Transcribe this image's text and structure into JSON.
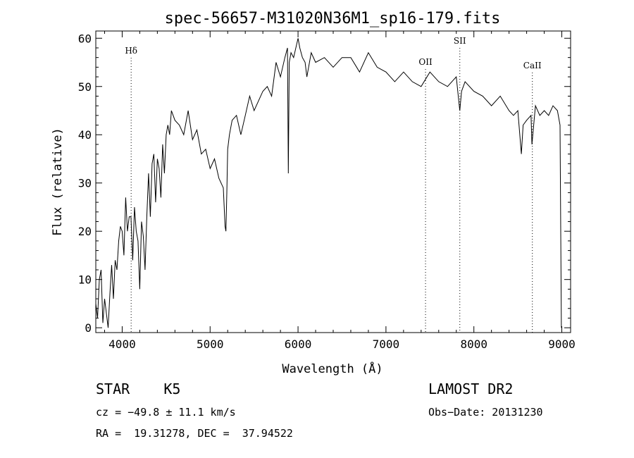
{
  "chart_data": {
    "type": "line",
    "title": "spec-56657-M31020N36M1_sp16-179.fits",
    "xlabel": "Wavelength (Å)",
    "ylabel": "Flux (relative)",
    "xlim": [
      3700,
      9100
    ],
    "ylim": [
      -1,
      61.5
    ],
    "x_ticks": [
      4000,
      5000,
      6000,
      7000,
      8000,
      9000
    ],
    "y_ticks": [
      0,
      10,
      20,
      30,
      40,
      50,
      60
    ],
    "grid": false,
    "series": [
      {
        "x": [
          3700,
          3720,
          3740,
          3760,
          3780,
          3800,
          3820,
          3840,
          3860,
          3880,
          3900,
          3920,
          3940,
          3960,
          3980,
          4000,
          4020,
          4040,
          4060,
          4080,
          4100,
          4120,
          4140,
          4160,
          4180,
          4200,
          4220,
          4240,
          4260,
          4280,
          4300,
          4320,
          4340,
          4360,
          4380,
          4400,
          4420,
          4440,
          4460,
          4480,
          4500,
          4520,
          4540,
          4560,
          4580,
          4600,
          4650,
          4700,
          4750,
          4800,
          4850,
          4900,
          4950,
          5000,
          5050,
          5100,
          5150,
          5170,
          5180,
          5190,
          5200,
          5220,
          5250,
          5300,
          5350,
          5400,
          5450,
          5500,
          5550,
          5600,
          5650,
          5700,
          5750,
          5800,
          5850,
          5880,
          5890,
          5900,
          5920,
          5950,
          6000,
          6020,
          6050,
          6080,
          6100,
          6150,
          6200,
          6300,
          6400,
          6500,
          6600,
          6700,
          6800,
          6900,
          7000,
          7100,
          7200,
          7300,
          7400,
          7500,
          7600,
          7700,
          7800,
          7840,
          7860,
          7900,
          8000,
          8100,
          8200,
          8300,
          8400,
          8450,
          8500,
          8540,
          8560,
          8600,
          8650,
          8660,
          8700,
          8750,
          8800,
          8850,
          8900,
          8950,
          8980,
          8995
        ],
        "y": [
          5,
          2,
          10,
          12,
          1,
          6,
          3,
          0,
          7,
          13,
          6,
          14,
          12,
          18,
          21,
          20,
          15,
          27,
          20,
          23,
          23,
          14,
          25,
          20,
          18,
          8,
          22,
          19,
          12,
          23,
          32,
          23,
          34,
          36,
          26,
          35,
          33,
          27,
          38,
          32,
          40,
          42,
          40,
          45,
          44,
          43,
          42,
          40,
          45,
          39,
          41,
          36,
          37,
          33,
          35,
          31,
          29,
          21,
          20,
          28,
          37,
          40,
          43,
          44,
          40,
          44,
          48,
          45,
          47,
          49,
          50,
          48,
          55,
          52,
          56,
          58,
          32,
          55,
          57,
          56,
          60,
          58,
          56,
          55,
          52,
          57,
          55,
          56,
          54,
          56,
          56,
          53,
          57,
          54,
          53,
          51,
          53,
          51,
          50,
          53,
          51,
          50,
          52,
          45,
          49,
          51,
          49,
          48,
          46,
          48,
          45,
          44,
          45,
          36,
          42,
          43,
          44,
          38,
          46,
          44,
          45,
          44,
          46,
          45,
          42,
          0
        ]
      }
    ],
    "annotations": [
      {
        "label": "Hδ",
        "x": 4102
      },
      {
        "label": "OII",
        "x": 7450
      },
      {
        "label": "SII",
        "x": 7840
      },
      {
        "label": "CaII",
        "x": 8665
      }
    ]
  },
  "info": {
    "classification": "STAR    K5",
    "survey": "LAMOST DR2",
    "cz": "cz = −49.8 ± 11.1 km/s",
    "obs_date": "Obs−Date: 20131230",
    "coords": "RA =  19.31278, DEC =  37.94522"
  }
}
